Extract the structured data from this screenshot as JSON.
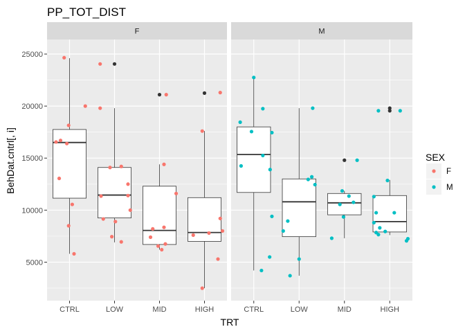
{
  "chart_data": {
    "type": "boxplot-jitter",
    "title": "PP_TOT_DIST",
    "xlabel": "TRT",
    "ylabel": "BehDat.cntrl[, i]",
    "categories": [
      "CTRL",
      "LOW",
      "MID",
      "HIGH"
    ],
    "y_ticks": [
      5000,
      10000,
      15000,
      20000,
      25000
    ],
    "y_tick_labels": [
      "5000",
      "10000",
      "15000",
      "20000",
      "25000"
    ],
    "ylim": [
      1300,
      26400
    ],
    "grid": true,
    "legend": {
      "title": "SEX",
      "position": "right",
      "entries": [
        {
          "label": "F",
          "color": "#F8766D"
        },
        {
          "label": "M",
          "color": "#00BFC4"
        }
      ]
    },
    "colors": {
      "F": "#F8766D",
      "M": "#00BFC4",
      "outlier": "#333333"
    },
    "panels": [
      {
        "strip": "F",
        "series_key": "F",
        "boxes": [
          {
            "category": "CTRL",
            "q1": 11150,
            "median": 16500,
            "q3": 17750,
            "lower": 5800,
            "upper": 24600,
            "outliers": []
          },
          {
            "category": "LOW",
            "q1": 9250,
            "median": 11450,
            "q3": 14100,
            "lower": 6900,
            "upper": 19800,
            "outliers": [
              24050
            ]
          },
          {
            "category": "MID",
            "q1": 6700,
            "median": 8050,
            "q3": 12300,
            "lower": 6200,
            "upper": 14400,
            "outliers": [
              21100
            ]
          },
          {
            "category": "HIGH",
            "q1": 7000,
            "median": 7850,
            "q3": 11200,
            "lower": 2500,
            "upper": 17600,
            "outliers": [
              21250
            ]
          }
        ],
        "points": [
          {
            "category": "CTRL",
            "jitter": -0.12,
            "y": 24650
          },
          {
            "category": "CTRL",
            "jitter": 0.35,
            "y": 20000
          },
          {
            "category": "CTRL",
            "jitter": -0.02,
            "y": 18150
          },
          {
            "category": "CTRL",
            "jitter": -0.2,
            "y": 16700
          },
          {
            "category": "CTRL",
            "jitter": -0.3,
            "y": 16550
          },
          {
            "category": "CTRL",
            "jitter": -0.06,
            "y": 16400
          },
          {
            "category": "CTRL",
            "jitter": -0.23,
            "y": 13050
          },
          {
            "category": "CTRL",
            "jitter": 0.06,
            "y": 10550
          },
          {
            "category": "CTRL",
            "jitter": -0.02,
            "y": 8500
          },
          {
            "category": "CTRL",
            "jitter": 0.1,
            "y": 5800
          },
          {
            "category": "LOW",
            "jitter": -0.32,
            "y": 24050
          },
          {
            "category": "LOW",
            "jitter": -0.32,
            "y": 19800
          },
          {
            "category": "LOW",
            "jitter": -0.1,
            "y": 14100
          },
          {
            "category": "LOW",
            "jitter": 0.15,
            "y": 14200
          },
          {
            "category": "LOW",
            "jitter": 0.3,
            "y": 12500
          },
          {
            "category": "LOW",
            "jitter": 0.3,
            "y": 11400
          },
          {
            "category": "LOW",
            "jitter": -0.3,
            "y": 11350
          },
          {
            "category": "LOW",
            "jitter": 0.35,
            "y": 10000
          },
          {
            "category": "LOW",
            "jitter": -0.25,
            "y": 9150
          },
          {
            "category": "LOW",
            "jitter": 0.02,
            "y": 8900
          },
          {
            "category": "LOW",
            "jitter": -0.06,
            "y": 7450
          },
          {
            "category": "LOW",
            "jitter": 0.15,
            "y": 6950
          },
          {
            "category": "MID",
            "jitter": 0.15,
            "y": 21100
          },
          {
            "category": "MID",
            "jitter": 0.1,
            "y": 14400
          },
          {
            "category": "MID",
            "jitter": 0.37,
            "y": 11600
          },
          {
            "category": "MID",
            "jitter": 0.1,
            "y": 8350
          },
          {
            "category": "MID",
            "jitter": -0.15,
            "y": 8200
          },
          {
            "category": "MID",
            "jitter": -0.2,
            "y": 7400
          },
          {
            "category": "MID",
            "jitter": 0.13,
            "y": 6750
          },
          {
            "category": "MID",
            "jitter": -0.03,
            "y": 6550
          },
          {
            "category": "MID",
            "jitter": 0.05,
            "y": 6200
          },
          {
            "category": "HIGH",
            "jitter": 0.35,
            "y": 21300
          },
          {
            "category": "HIGH",
            "jitter": -0.05,
            "y": 17600
          },
          {
            "category": "HIGH",
            "jitter": 0.35,
            "y": 9200
          },
          {
            "category": "HIGH",
            "jitter": 0.4,
            "y": 8000
          },
          {
            "category": "HIGH",
            "jitter": 0.1,
            "y": 7800
          },
          {
            "category": "HIGH",
            "jitter": -0.25,
            "y": 7600
          },
          {
            "category": "HIGH",
            "jitter": 0.3,
            "y": 5300
          },
          {
            "category": "HIGH",
            "jitter": -0.05,
            "y": 2500
          }
        ]
      },
      {
        "strip": "M",
        "series_key": "M",
        "boxes": [
          {
            "category": "CTRL",
            "q1": 11700,
            "median": 15350,
            "q3": 18000,
            "lower": 4200,
            "upper": 22700,
            "outliers": []
          },
          {
            "category": "LOW",
            "q1": 7450,
            "median": 10800,
            "q3": 13000,
            "lower": 3700,
            "upper": 19800,
            "outliers": []
          },
          {
            "category": "MID",
            "q1": 9550,
            "median": 10700,
            "q3": 11600,
            "lower": 7300,
            "upper": 11850,
            "outliers": [
              14800
            ]
          },
          {
            "category": "HIGH",
            "q1": 7900,
            "median": 8900,
            "q3": 11400,
            "lower": 7600,
            "upper": 12900,
            "outliers": [
              19800,
              19550
            ]
          }
        ],
        "points": [
          {
            "category": "CTRL",
            "jitter": 0.0,
            "y": 22750
          },
          {
            "category": "CTRL",
            "jitter": 0.2,
            "y": 19750
          },
          {
            "category": "CTRL",
            "jitter": -0.3,
            "y": 18450
          },
          {
            "category": "CTRL",
            "jitter": -0.05,
            "y": 17550
          },
          {
            "category": "CTRL",
            "jitter": 0.4,
            "y": 17450
          },
          {
            "category": "CTRL",
            "jitter": 0.2,
            "y": 15250
          },
          {
            "category": "CTRL",
            "jitter": -0.28,
            "y": 14250
          },
          {
            "category": "CTRL",
            "jitter": 0.36,
            "y": 13900
          },
          {
            "category": "CTRL",
            "jitter": 0.4,
            "y": 9400
          },
          {
            "category": "CTRL",
            "jitter": 0.35,
            "y": 5500
          },
          {
            "category": "CTRL",
            "jitter": 0.17,
            "y": 4200
          },
          {
            "category": "LOW",
            "jitter": 0.3,
            "y": 19800
          },
          {
            "category": "LOW",
            "jitter": 0.28,
            "y": 13200
          },
          {
            "category": "LOW",
            "jitter": 0.2,
            "y": 12950
          },
          {
            "category": "LOW",
            "jitter": 0.35,
            "y": 12450
          },
          {
            "category": "LOW",
            "jitter": -0.25,
            "y": 8950
          },
          {
            "category": "LOW",
            "jitter": -0.35,
            "y": 8000
          },
          {
            "category": "LOW",
            "jitter": 0.0,
            "y": 5300
          },
          {
            "category": "LOW",
            "jitter": -0.2,
            "y": 3700
          },
          {
            "category": "MID",
            "jitter": 0.28,
            "y": 14800
          },
          {
            "category": "MID",
            "jitter": -0.05,
            "y": 11850
          },
          {
            "category": "MID",
            "jitter": 0.1,
            "y": 11350
          },
          {
            "category": "MID",
            "jitter": 0.2,
            "y": 10750
          },
          {
            "category": "MID",
            "jitter": -0.1,
            "y": 10550
          },
          {
            "category": "MID",
            "jitter": -0.02,
            "y": 9350
          },
          {
            "category": "MID",
            "jitter": -0.28,
            "y": 7300
          },
          {
            "category": "HIGH",
            "jitter": -0.25,
            "y": 19550
          },
          {
            "category": "HIGH",
            "jitter": 0.23,
            "y": 19550
          },
          {
            "category": "HIGH",
            "jitter": -0.05,
            "y": 12850
          },
          {
            "category": "HIGH",
            "jitter": -0.35,
            "y": 11300
          },
          {
            "category": "HIGH",
            "jitter": -0.3,
            "y": 9750
          },
          {
            "category": "HIGH",
            "jitter": 0.1,
            "y": 9750
          },
          {
            "category": "HIGH",
            "jitter": -0.35,
            "y": 8800
          },
          {
            "category": "HIGH",
            "jitter": -0.22,
            "y": 8300
          },
          {
            "category": "HIGH",
            "jitter": -0.1,
            "y": 7950
          },
          {
            "category": "HIGH",
            "jitter": -0.3,
            "y": 7850
          },
          {
            "category": "HIGH",
            "jitter": -0.25,
            "y": 7650
          },
          {
            "category": "HIGH",
            "jitter": 0.4,
            "y": 7250
          },
          {
            "category": "HIGH",
            "jitter": 0.37,
            "y": 7050
          }
        ]
      }
    ]
  }
}
